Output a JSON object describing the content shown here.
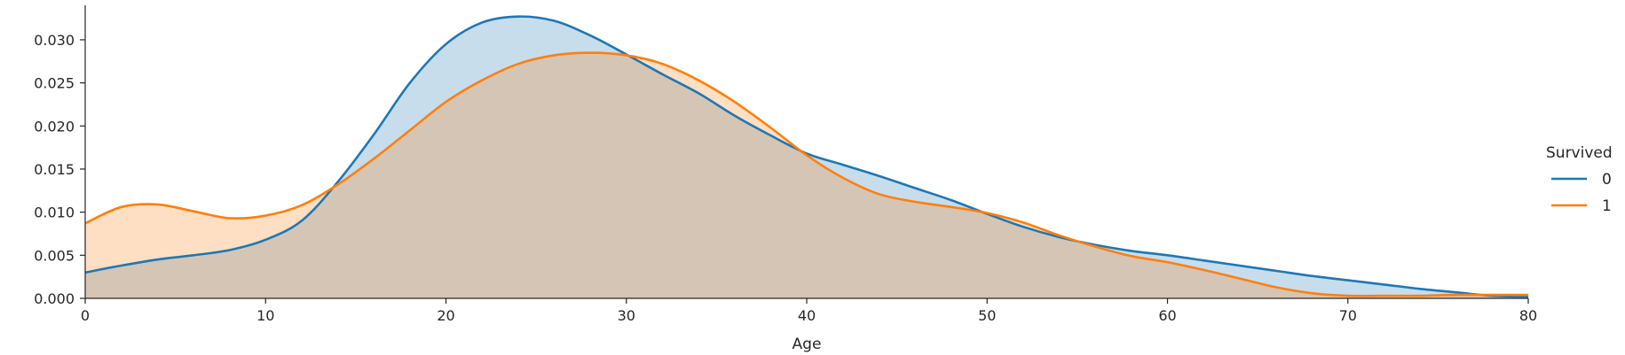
{
  "chart_data": {
    "type": "area",
    "xlabel": "Age",
    "ylabel": "",
    "xlim": [
      0,
      80
    ],
    "ylim": [
      0,
      0.034
    ],
    "xticks": [
      "0",
      "10",
      "20",
      "30",
      "40",
      "50",
      "60",
      "70",
      "80"
    ],
    "yticks": [
      "0.000",
      "0.005",
      "0.010",
      "0.015",
      "0.020",
      "0.025",
      "0.030"
    ],
    "grid": false,
    "legend": {
      "title": "Survived",
      "placement": "right"
    },
    "series": [
      {
        "name": "0",
        "color": "#1f77b4",
        "x": [
          0,
          2,
          4,
          6,
          8,
          10,
          12,
          14,
          16,
          18,
          20,
          22,
          24,
          26,
          28,
          30,
          32,
          34,
          36,
          38,
          40,
          42,
          44,
          46,
          48,
          50,
          52,
          54,
          56,
          58,
          60,
          62,
          64,
          66,
          68,
          70,
          72,
          74,
          76,
          78,
          80
        ],
        "y": [
          0.003,
          0.0038,
          0.0045,
          0.005,
          0.0056,
          0.0068,
          0.009,
          0.0135,
          0.019,
          0.025,
          0.0295,
          0.032,
          0.0327,
          0.0322,
          0.0305,
          0.0283,
          0.026,
          0.0238,
          0.0212,
          0.0189,
          0.0168,
          0.0155,
          0.0142,
          0.0128,
          0.0114,
          0.0098,
          0.0083,
          0.0071,
          0.0062,
          0.0055,
          0.005,
          0.0044,
          0.0038,
          0.0032,
          0.0026,
          0.0021,
          0.0016,
          0.0011,
          0.0007,
          0.0003,
          0.0002
        ]
      },
      {
        "name": "1",
        "color": "#ff7f0e",
        "x": [
          0,
          2,
          4,
          6,
          8,
          10,
          12,
          14,
          16,
          18,
          20,
          22,
          24,
          26,
          28,
          30,
          32,
          34,
          36,
          38,
          40,
          42,
          44,
          46,
          48,
          50,
          52,
          54,
          56,
          58,
          60,
          62,
          64,
          66,
          68,
          70,
          72,
          74,
          76,
          78,
          80
        ],
        "y": [
          0.0087,
          0.0106,
          0.0109,
          0.0101,
          0.0093,
          0.0096,
          0.0108,
          0.0132,
          0.0162,
          0.0195,
          0.0228,
          0.0253,
          0.0272,
          0.0282,
          0.0285,
          0.0282,
          0.0272,
          0.0253,
          0.0228,
          0.0198,
          0.0166,
          0.014,
          0.0121,
          0.0112,
          0.0106,
          0.0099,
          0.0088,
          0.0073,
          0.006,
          0.0049,
          0.0042,
          0.0033,
          0.0023,
          0.0013,
          0.0006,
          0.0003,
          0.0003,
          0.0003,
          0.0004,
          0.0004,
          0.0004
        ]
      }
    ]
  }
}
